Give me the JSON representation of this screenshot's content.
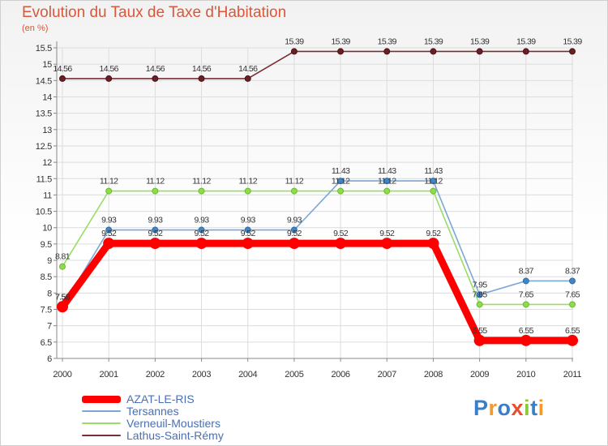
{
  "chart_data": {
    "type": "line",
    "title": "Evolution du Taux de Taxe d'Habitation",
    "ylabel": "(en %)",
    "xlabel": "",
    "ylim": [
      6,
      15.5
    ],
    "ytick_step": 0.5,
    "grid": true,
    "legend_position": "bottom-left",
    "x": [
      "2000",
      "2001",
      "2002",
      "2003",
      "2004",
      "2005",
      "2006",
      "2007",
      "2008",
      "2009",
      "2010",
      "2011"
    ],
    "y_ticks": [
      "6",
      "6.5",
      "7",
      "7.5",
      "8",
      "8.5",
      "9",
      "9.5",
      "10",
      "10.5",
      "11",
      "11.5",
      "12",
      "12.5",
      "13",
      "13.5",
      "14",
      "14.5",
      "15",
      "15.5"
    ],
    "series": [
      {
        "name": "AZAT-LE-RIS",
        "color": "#ff0000",
        "values": [
          7.58,
          9.52,
          9.52,
          9.52,
          9.52,
          9.52,
          9.52,
          9.52,
          9.52,
          6.55,
          6.55,
          6.55
        ],
        "labels": [
          "7.58",
          "9.52",
          "9.52",
          "9.52",
          "9.52",
          "9.52",
          "9.52",
          "9.52",
          "9.52",
          "6.55",
          "6.55",
          "6.55"
        ]
      },
      {
        "name": "Tersannes",
        "color": "#7aa7d6",
        "values": [
          7.58,
          9.93,
          9.93,
          9.93,
          9.93,
          9.93,
          11.43,
          11.43,
          11.43,
          7.95,
          8.37,
          8.37
        ],
        "labels": [
          "7.58",
          "9.93",
          "9.93",
          "9.93",
          "9.93",
          "9.93",
          "11.43",
          "11.43",
          "11.43",
          "7.95",
          "8.37",
          "8.37"
        ]
      },
      {
        "name": "Verneuil-Moustiers",
        "color": "#99dd66",
        "values": [
          8.81,
          11.12,
          11.12,
          11.12,
          11.12,
          11.12,
          11.12,
          11.12,
          11.12,
          7.65,
          7.65,
          7.65
        ],
        "labels": [
          "8.81",
          "11.12",
          "11.12",
          "11.12",
          "11.12",
          "11.12",
          "11.12",
          "11.12",
          "11.12",
          "7.65",
          "7.65",
          "7.65"
        ]
      },
      {
        "name": "Lathus-Saint-Rémy",
        "color": "#7a2e34",
        "values": [
          14.56,
          14.56,
          14.56,
          14.56,
          14.56,
          15.39,
          15.39,
          15.39,
          15.39,
          15.39,
          15.39,
          15.39
        ],
        "labels": [
          "14.56",
          "14.56",
          "14.56",
          "14.56",
          "14.56",
          "15.39",
          "15.39",
          "15.39",
          "15.39",
          "15.39",
          "15.39",
          "15.39"
        ]
      }
    ]
  },
  "logo": {
    "text": "Proxiti",
    "letters": [
      "P",
      "r",
      "o",
      "x",
      "i",
      "t",
      "i"
    ],
    "colors": [
      "#3a7fc8",
      "#f29a2e",
      "#3a7fc8",
      "#e84d2c",
      "#8cc83c",
      "#3a7fc8",
      "#f29a2e"
    ]
  }
}
